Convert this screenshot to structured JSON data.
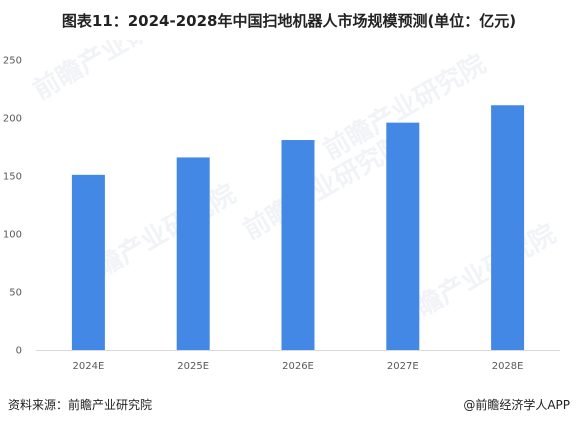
{
  "title": "图表11：2024-2028年中国扫地机器人市场规模预测(单位：亿元)",
  "chart_data": {
    "type": "bar",
    "title": "图表11：2024-2028年中国扫地机器人市场规模预测(单位：亿元)",
    "categories": [
      "2024E",
      "2025E",
      "2026E",
      "2027E",
      "2028E"
    ],
    "values": [
      151,
      166,
      181,
      196,
      211
    ],
    "ylim": [
      0,
      250
    ],
    "yticks": [
      0,
      50,
      100,
      150,
      200,
      250
    ],
    "xlabel": "",
    "ylabel": "",
    "grid": false,
    "bar_color": "#4488E6"
  },
  "footer": {
    "source": "资料来源：前瞻产业研究院",
    "credit": "@前瞻经济学人APP"
  },
  "watermark": "前瞻产业研究院"
}
